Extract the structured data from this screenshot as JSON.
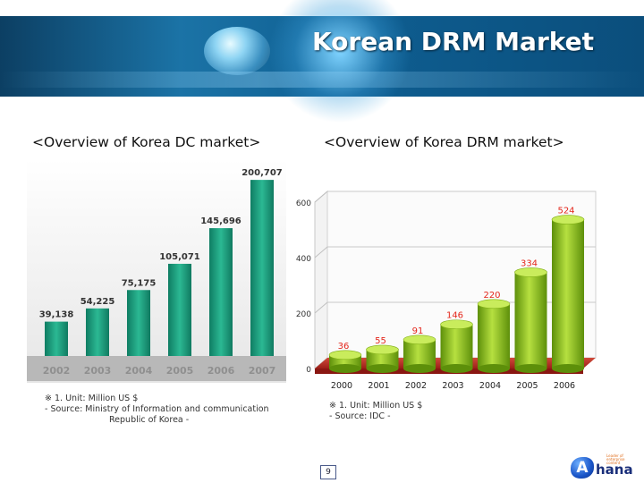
{
  "header": {
    "title": "Korean DRM Market"
  },
  "footer": {
    "page_number": "9",
    "logo_text": "hana",
    "logo_letter": "A",
    "logo_small": "Leader of enterprise content"
  },
  "colors": {
    "dc_bar": "#1a9a7c",
    "drm_bar": "#8fc21d",
    "banner": "#1b73a6"
  },
  "chart_data": [
    {
      "type": "bar",
      "title": "<Overview of Korea DC market>",
      "categories": [
        "2002",
        "2003",
        "2004",
        "2005",
        "2006",
        "2007"
      ],
      "values": [
        39138,
        54225,
        75175,
        105071,
        145696,
        200707
      ],
      "value_labels": [
        "39,138",
        "54,225",
        "75,175",
        "105,071",
        "145,696",
        "200,707"
      ],
      "ylim": [
        0,
        210000
      ],
      "notes": [
        "※ 1. Unit: Million US $",
        "- Source: Ministry of Information and communication",
        "Republic of Korea -"
      ]
    },
    {
      "type": "bar",
      "title": "<Overview of Korea DRM market>",
      "categories": [
        "2000",
        "2001",
        "2002",
        "2003",
        "2004",
        "2005",
        "2006"
      ],
      "values": [
        36,
        55,
        91,
        146,
        220,
        334,
        524
      ],
      "ylim": [
        0,
        600
      ],
      "yticks": [
        0,
        200,
        400,
        600
      ],
      "grid": true,
      "notes": [
        "※ 1. Unit: Million US $",
        "- Source: IDC -"
      ]
    }
  ]
}
